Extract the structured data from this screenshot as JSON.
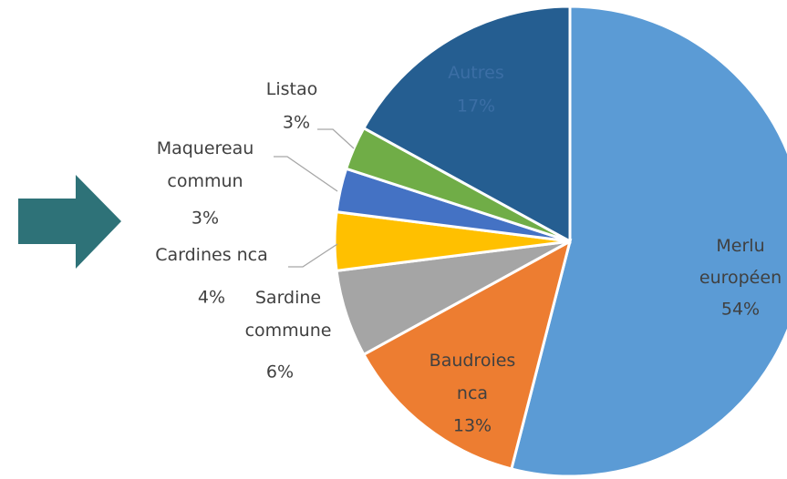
{
  "chart_data": {
    "type": "pie",
    "categories": [
      "Merlu européen",
      "Baudroies nca",
      "Sardine commune",
      "Cardines nca",
      "Maquereau commun",
      "Listao",
      "Autres"
    ],
    "values": [
      54,
      13,
      6,
      4,
      3,
      3,
      17
    ],
    "value_labels": [
      "54%",
      "13%",
      "6%",
      "4%",
      "3%",
      "3%",
      "17%"
    ],
    "colors": [
      "#5b9bd5",
      "#ed7d31",
      "#a5a5a5",
      "#ffc000",
      "#4472c4",
      "#70ad47",
      "#255e91"
    ]
  }
}
